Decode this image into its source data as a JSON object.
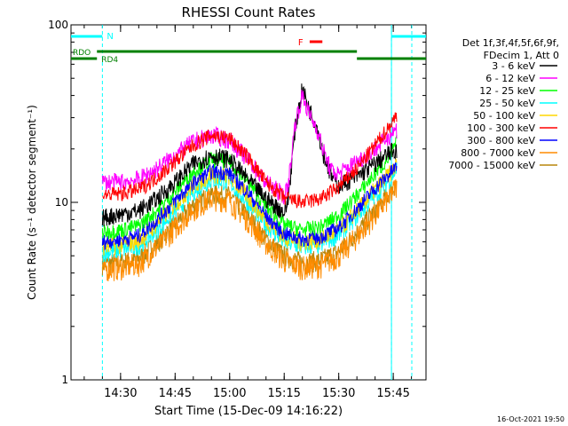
{
  "chart_data": {
    "type": "line",
    "title": "RHESSI Count Rates",
    "xlabel": "Start Time (15-Dec-09 14:16:22)",
    "ylabel": "Count Rate (s⁻¹ detector segment⁻¹)",
    "yscale": "log",
    "ylim": [
      1,
      100
    ],
    "xlim": [
      "14:16:22",
      "15:54:00"
    ],
    "y_ticks": [
      "1",
      "10",
      "100"
    ],
    "x_ticks": [
      "14:30",
      "14:45",
      "15:00",
      "15:15",
      "15:30",
      "15:45"
    ],
    "legend_title": [
      "Det 1f,3f,4f,5f,6f,9f,",
      "FDecim 1, Att 0"
    ],
    "legend_position": "right",
    "timestamp": "16-Oct-2021 19:50",
    "annotations": {
      "N": "N",
      "F": "F",
      "RDO": "RDO",
      "RD4": "RD4"
    },
    "attenuator_bars": {
      "night": [
        [
          "14:16:22",
          "14:25:00"
        ],
        [
          "15:44:30",
          "15:54:00"
        ]
      ],
      "flare": [
        [
          "15:22:00",
          "15:25:30"
        ]
      ],
      "rdo": [
        [
          "14:16:22",
          "14:23:30"
        ],
        [
          "14:23:30",
          "15:35:00"
        ],
        [
          "15:35:00",
          "15:54:00"
        ]
      ]
    },
    "series": [
      {
        "name": "3 - 6 keV",
        "color": "#000000",
        "x": [
          "14:25",
          "14:30",
          "14:35",
          "14:40",
          "14:45",
          "14:50",
          "14:55",
          "15:00",
          "15:05",
          "15:10",
          "15:15",
          "15:16",
          "15:18",
          "15:20",
          "15:22",
          "15:24",
          "15:26",
          "15:28",
          "15:30",
          "15:35",
          "15:40",
          "15:44",
          "15:46"
        ],
        "y": [
          8.2,
          8.6,
          9,
          10.5,
          13,
          16.5,
          18.5,
          17.5,
          13.5,
          10.5,
          8.8,
          10,
          26,
          44,
          33,
          27,
          18,
          14,
          12.5,
          14,
          16.5,
          19,
          20
        ]
      },
      {
        "name": "6 - 12 keV",
        "color": "#ff00ff",
        "x": [
          "14:25",
          "14:30",
          "14:35",
          "14:40",
          "14:45",
          "14:50",
          "14:55",
          "15:00",
          "15:05",
          "15:10",
          "15:15",
          "15:16",
          "15:18",
          "15:20",
          "15:22",
          "15:24",
          "15:26",
          "15:28",
          "15:30",
          "15:35",
          "15:40",
          "15:44",
          "15:46"
        ],
        "y": [
          13,
          13,
          13.5,
          15.5,
          18.5,
          22,
          24,
          22.5,
          17.5,
          13,
          11,
          12,
          28,
          40,
          31,
          26,
          19,
          15,
          14.5,
          17,
          20,
          24,
          26
        ]
      },
      {
        "name": "12 - 25 keV",
        "color": "#00ff00",
        "x": [
          "14:25",
          "14:30",
          "14:35",
          "14:40",
          "14:45",
          "14:50",
          "14:55",
          "15:00",
          "15:05",
          "15:10",
          "15:15",
          "15:20",
          "15:25",
          "15:30",
          "15:35",
          "15:40",
          "15:44",
          "15:46"
        ],
        "y": [
          6.8,
          7,
          7.4,
          9,
          11.5,
          15,
          17.5,
          17,
          13,
          9.5,
          7.5,
          7,
          7.3,
          8.5,
          11,
          14.5,
          18,
          22
        ]
      },
      {
        "name": "25 - 50 keV",
        "color": "#00ffff",
        "x": [
          "14:25",
          "14:30",
          "14:35",
          "14:40",
          "14:45",
          "14:50",
          "14:55",
          "15:00",
          "15:05",
          "15:10",
          "15:15",
          "15:20",
          "15:25",
          "15:30",
          "15:35",
          "15:40",
          "15:44",
          "15:46"
        ],
        "y": [
          5.2,
          5.4,
          5.7,
          7,
          9,
          11.5,
          13.5,
          13,
          10,
          7.5,
          6,
          5.6,
          5.8,
          6.6,
          8.4,
          11,
          13.5,
          15.5
        ]
      },
      {
        "name": "50 - 100 keV",
        "color": "#ffd700",
        "x": [
          "14:25",
          "14:30",
          "14:35",
          "14:40",
          "14:45",
          "14:50",
          "14:55",
          "15:00",
          "15:05",
          "15:10",
          "15:15",
          "15:20",
          "15:25",
          "15:30",
          "15:35",
          "15:40",
          "15:44",
          "15:46"
        ],
        "y": [
          5.6,
          5.8,
          6.1,
          7.6,
          9.8,
          12.5,
          14.5,
          14,
          10.8,
          8,
          6.4,
          6,
          6.2,
          7,
          9,
          11.8,
          14.5,
          16.5
        ]
      },
      {
        "name": "100 - 300 keV",
        "color": "#ff0000",
        "x": [
          "14:25",
          "14:30",
          "14:35",
          "14:40",
          "14:45",
          "14:50",
          "14:55",
          "15:00",
          "15:05",
          "15:10",
          "15:15",
          "15:20",
          "15:25",
          "15:30",
          "15:35",
          "15:40",
          "15:44",
          "15:46"
        ],
        "y": [
          11,
          11.2,
          11.8,
          13.8,
          17,
          21,
          24,
          23,
          18,
          13,
          10.6,
          10,
          10.5,
          12.2,
          15.5,
          21,
          27,
          31
        ]
      },
      {
        "name": "300 - 800 keV",
        "color": "#0000ff",
        "x": [
          "14:25",
          "14:30",
          "14:35",
          "14:40",
          "14:45",
          "14:50",
          "14:55",
          "15:00",
          "15:05",
          "15:10",
          "15:15",
          "15:20",
          "15:25",
          "15:30",
          "15:35",
          "15:40",
          "15:44",
          "15:46"
        ],
        "y": [
          6,
          6.2,
          6.5,
          8,
          10.2,
          13,
          15,
          14.6,
          11.4,
          8.4,
          6.7,
          6.2,
          6.4,
          7.2,
          9.2,
          12,
          14.5,
          16
        ]
      },
      {
        "name": "800 - 7000 keV",
        "color": "#ff8c00",
        "x": [
          "14:25",
          "14:30",
          "14:35",
          "14:40",
          "14:45",
          "14:50",
          "14:55",
          "15:00",
          "15:05",
          "15:10",
          "15:15",
          "15:20",
          "15:25",
          "15:30",
          "15:35",
          "15:40",
          "15:44",
          "15:46"
        ],
        "y": [
          4.2,
          4.3,
          4.5,
          5.6,
          7.2,
          9.2,
          10.6,
          10.3,
          8,
          5.9,
          4.7,
          4.3,
          4.4,
          5,
          6.4,
          8.5,
          10.8,
          12.5
        ]
      },
      {
        "name": "7000 - 15000 keV",
        "color": "#b8860b",
        "x": [
          "14:25",
          "14:30",
          "14:35",
          "14:40",
          "14:45",
          "14:50",
          "14:55",
          "15:00",
          "15:05",
          "15:10",
          "15:15",
          "15:20",
          "15:25",
          "15:30",
          "15:35",
          "15:40",
          "15:44",
          "15:46"
        ],
        "y": [
          4.5,
          4.6,
          4.8,
          5.9,
          7.6,
          9.7,
          11.2,
          10.9,
          8.5,
          6.2,
          5,
          4.6,
          4.7,
          5.3,
          6.8,
          9,
          11.3,
          13
        ]
      }
    ]
  }
}
